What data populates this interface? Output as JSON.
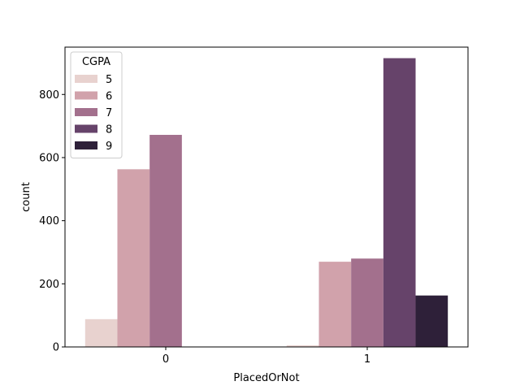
{
  "chart_data": {
    "type": "bar",
    "xlabel": "PlacedOrNot",
    "ylabel": "count",
    "categories": [
      "0",
      "1"
    ],
    "ylim": [
      0,
      950
    ],
    "yticks": [
      0,
      200,
      400,
      600,
      800
    ],
    "grid": false,
    "legend": {
      "title": "CGPA",
      "placement": "top-left"
    },
    "series": [
      {
        "name": "5",
        "color": "#e8d2cf",
        "values": [
          88,
          5
        ]
      },
      {
        "name": "6",
        "color": "#d1a2ab",
        "values": [
          563,
          270
        ]
      },
      {
        "name": "7",
        "color": "#a3708d",
        "values": [
          672,
          280
        ]
      },
      {
        "name": "8",
        "color": "#66436a",
        "values": [
          0,
          915
        ]
      },
      {
        "name": "9",
        "color": "#2e2039",
        "values": [
          0,
          163
        ]
      }
    ]
  }
}
